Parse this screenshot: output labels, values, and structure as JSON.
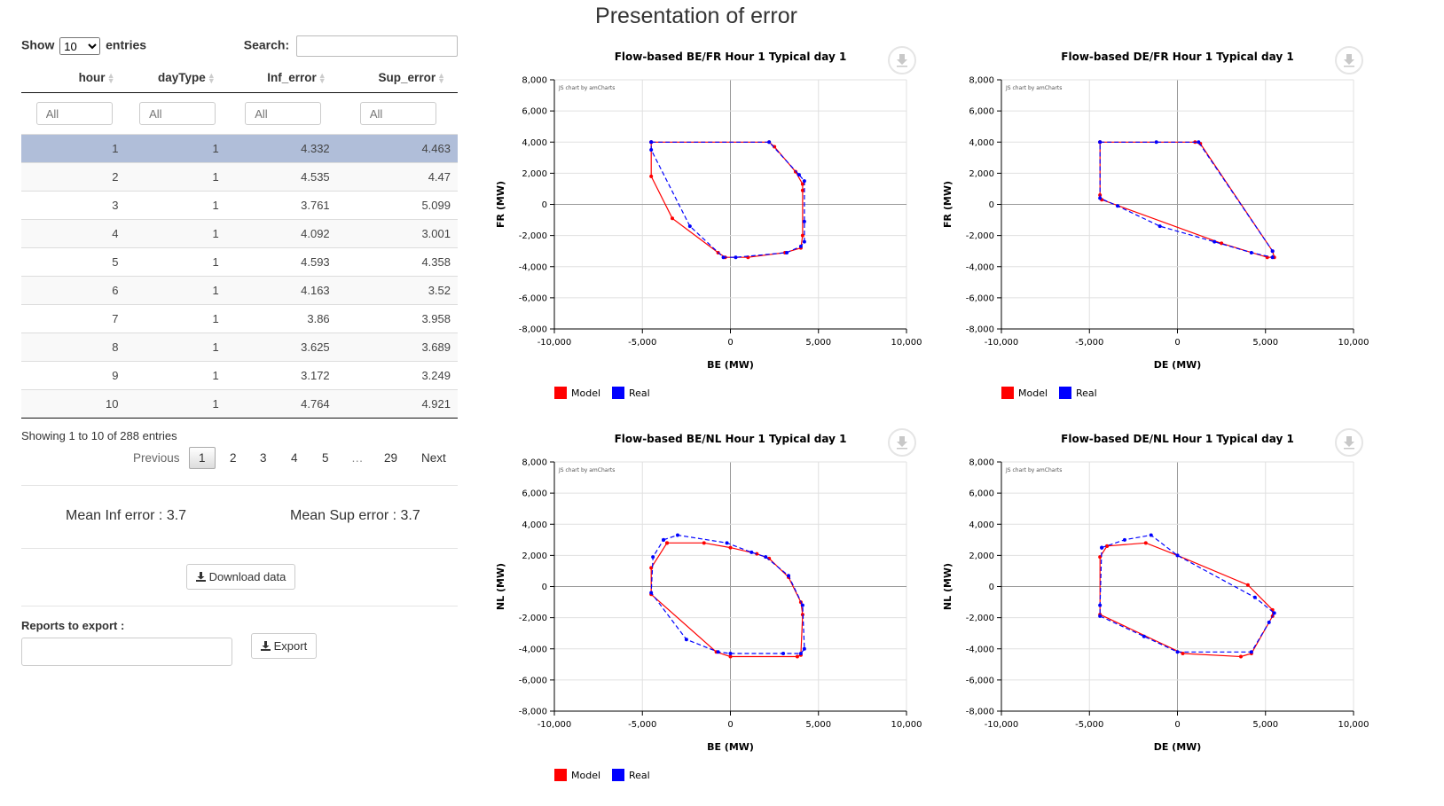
{
  "page_title": "Presentation of error",
  "table": {
    "show_label": "Show",
    "entries_label": "entries",
    "page_length": "10",
    "search_label": "Search:",
    "search_value": "",
    "columns": [
      "hour",
      "dayType",
      "Inf_error",
      "Sup_error"
    ],
    "filter_placeholder": "All",
    "rows": [
      [
        "1",
        "1",
        "4.332",
        "4.463"
      ],
      [
        "2",
        "1",
        "4.535",
        "4.47"
      ],
      [
        "3",
        "1",
        "3.761",
        "5.099"
      ],
      [
        "4",
        "1",
        "4.092",
        "3.001"
      ],
      [
        "5",
        "1",
        "4.593",
        "4.358"
      ],
      [
        "6",
        "1",
        "4.163",
        "3.52"
      ],
      [
        "7",
        "1",
        "3.86",
        "3.958"
      ],
      [
        "8",
        "1",
        "3.625",
        "3.689"
      ],
      [
        "9",
        "1",
        "3.172",
        "3.249"
      ],
      [
        "10",
        "1",
        "4.764",
        "4.921"
      ]
    ],
    "selected_row": 0,
    "info": "Showing 1 to 10 of 288 entries",
    "pagination": {
      "previous": "Previous",
      "pages": [
        "1",
        "2",
        "3",
        "4",
        "5",
        "…",
        "29"
      ],
      "current": "1",
      "next": "Next"
    }
  },
  "mean_inf": "Mean Inf error : 3.7",
  "mean_sup": "Mean Sup error : 3.7",
  "download_button": "Download data",
  "reports_label": "Reports to export :",
  "reports_value": "",
  "export_button": "Export",
  "download_icon": "download-icon",
  "colors": {
    "model": "#ff0000",
    "real": "#0000ff",
    "selected_row": "#b0bed9"
  },
  "chart_data": [
    {
      "type": "scatter",
      "title": "Flow-based BE/FR Hour 1 Typical day 1",
      "xlabel": "BE (MW)",
      "ylabel": "FR (MW)",
      "xlim": [
        -10000,
        10000
      ],
      "ylim": [
        -8000,
        8000
      ],
      "xticks": [
        "-10,000",
        "-5,000",
        "0",
        "5,000",
        "10,000"
      ],
      "yticks": [
        "8,000",
        "6,000",
        "4,000",
        "2,000",
        "0",
        "-2,000",
        "-4,000",
        "-6,000",
        "-8,000"
      ],
      "credit": "JS chart by amCharts",
      "legend": [
        "Model",
        "Real"
      ],
      "series": [
        {
          "name": "Model",
          "line": "solid",
          "points": [
            [
              -4500,
              4000
            ],
            [
              2200,
              4000
            ],
            [
              2500,
              3700
            ],
            [
              3700,
              2100
            ],
            [
              4100,
              1300
            ],
            [
              4100,
              900
            ],
            [
              4100,
              -2000
            ],
            [
              4000,
              -2800
            ],
            [
              3100,
              -3100
            ],
            [
              1000,
              -3400
            ],
            [
              -300,
              -3400
            ],
            [
              -700,
              -3100
            ],
            [
              -3300,
              -900
            ],
            [
              -4500,
              1800
            ],
            [
              -4500,
              4000
            ]
          ]
        },
        {
          "name": "Real",
          "line": "dashed",
          "points": [
            [
              -4500,
              4000
            ],
            [
              2200,
              4000
            ],
            [
              3900,
              1900
            ],
            [
              4200,
              1500
            ],
            [
              4200,
              -1100
            ],
            [
              4200,
              -2400
            ],
            [
              4000,
              -2700
            ],
            [
              3200,
              -3100
            ],
            [
              300,
              -3400
            ],
            [
              -400,
              -3400
            ],
            [
              -2300,
              -1400
            ],
            [
              -4500,
              3500
            ],
            [
              -4500,
              4000
            ]
          ]
        }
      ]
    },
    {
      "type": "scatter",
      "title": "Flow-based DE/FR Hour 1 Typical day 1",
      "xlabel": "DE (MW)",
      "ylabel": "FR (MW)",
      "xlim": [
        -10000,
        10000
      ],
      "ylim": [
        -8000,
        8000
      ],
      "xticks": [
        "-10,000",
        "-5,000",
        "0",
        "5,000",
        "10,000"
      ],
      "yticks": [
        "8,000",
        "6,000",
        "4,000",
        "2,000",
        "0",
        "-2,000",
        "-4,000",
        "-6,000",
        "-8,000"
      ],
      "credit": "JS chart by amCharts",
      "legend": [
        "Model",
        "Real"
      ],
      "series": [
        {
          "name": "Model",
          "line": "solid",
          "points": [
            [
              -4400,
              4000
            ],
            [
              1000,
              4000
            ],
            [
              1300,
              3900
            ],
            [
              5400,
              -3000
            ],
            [
              5500,
              -3400
            ],
            [
              5100,
              -3400
            ],
            [
              2500,
              -2500
            ],
            [
              -4300,
              300
            ],
            [
              -4400,
              600
            ],
            [
              -4400,
              4000
            ]
          ]
        },
        {
          "name": "Real",
          "line": "dashed",
          "points": [
            [
              -4400,
              4000
            ],
            [
              -1200,
              4000
            ],
            [
              1200,
              4000
            ],
            [
              5400,
              -3000
            ],
            [
              5400,
              -3400
            ],
            [
              4200,
              -3100
            ],
            [
              2100,
              -2400
            ],
            [
              -1000,
              -1400
            ],
            [
              -3400,
              -100
            ],
            [
              -4400,
              400
            ],
            [
              -4400,
              4000
            ]
          ]
        }
      ]
    },
    {
      "type": "scatter",
      "title": "Flow-based BE/NL Hour 1 Typical day 1",
      "xlabel": "BE (MW)",
      "ylabel": "NL (MW)",
      "xlim": [
        -10000,
        10000
      ],
      "ylim": [
        -8000,
        8000
      ],
      "xticks": [
        "-10,000",
        "-5,000",
        "0",
        "5,000",
        "10,000"
      ],
      "yticks": [
        "8,000",
        "6,000",
        "4,000",
        "2,000",
        "0",
        "-2,000",
        "-4,000",
        "-6,000",
        "-8,000"
      ],
      "credit": "JS chart by amCharts",
      "legend": [
        "Model",
        "Real"
      ],
      "series": [
        {
          "name": "Model",
          "line": "solid",
          "points": [
            [
              -3600,
              2800
            ],
            [
              -1500,
              2800
            ],
            [
              0,
              2500
            ],
            [
              1500,
              2100
            ],
            [
              2200,
              1800
            ],
            [
              3300,
              600
            ],
            [
              4000,
              -1000
            ],
            [
              4100,
              -1800
            ],
            [
              4000,
              -4400
            ],
            [
              3800,
              -4500
            ],
            [
              0,
              -4500
            ],
            [
              -800,
              -4200
            ],
            [
              -4500,
              -500
            ],
            [
              -4500,
              1200
            ],
            [
              -3600,
              2800
            ]
          ]
        },
        {
          "name": "Real",
          "line": "dashed",
          "points": [
            [
              -3800,
              3000
            ],
            [
              -3000,
              3300
            ],
            [
              -200,
              2800
            ],
            [
              1200,
              2200
            ],
            [
              2000,
              1900
            ],
            [
              3300,
              700
            ],
            [
              4100,
              -1200
            ],
            [
              4200,
              -4000
            ],
            [
              4000,
              -4300
            ],
            [
              3000,
              -4300
            ],
            [
              0,
              -4300
            ],
            [
              -700,
              -4200
            ],
            [
              -2500,
              -3400
            ],
            [
              -4500,
              -400
            ],
            [
              -4400,
              1900
            ],
            [
              -3800,
              3000
            ]
          ]
        }
      ]
    },
    {
      "type": "scatter",
      "title": "Flow-based DE/NL Hour 1 Typical day 1",
      "xlabel": "DE (MW)",
      "ylabel": "NL (MW)",
      "xlim": [
        -10000,
        10000
      ],
      "ylim": [
        -8000,
        8000
      ],
      "xticks": [
        "-10,000",
        "-5,000",
        "0",
        "5,000",
        "10,000"
      ],
      "yticks": [
        "8,000",
        "6,000",
        "4,000",
        "2,000",
        "0",
        "-2,000",
        "-4,000",
        "-6,000",
        "-8,000"
      ],
      "credit": "JS chart by amCharts",
      "legend": [],
      "series": [
        {
          "name": "Model",
          "line": "solid",
          "points": [
            [
              -4000,
              2600
            ],
            [
              -1800,
              2800
            ],
            [
              0,
              2000
            ],
            [
              4000,
              100
            ],
            [
              5400,
              -1500
            ],
            [
              5400,
              -1900
            ],
            [
              4200,
              -4300
            ],
            [
              3600,
              -4500
            ],
            [
              300,
              -4300
            ],
            [
              -4400,
              -1800
            ],
            [
              -4400,
              1900
            ],
            [
              -4000,
              2600
            ]
          ]
        },
        {
          "name": "Real",
          "line": "dashed",
          "points": [
            [
              -4300,
              2500
            ],
            [
              -3000,
              3000
            ],
            [
              -1500,
              3300
            ],
            [
              0,
              2000
            ],
            [
              4400,
              -700
            ],
            [
              5500,
              -1700
            ],
            [
              5200,
              -2300
            ],
            [
              4200,
              -4200
            ],
            [
              0,
              -4200
            ],
            [
              -1900,
              -3200
            ],
            [
              -4400,
              -1900
            ],
            [
              -4400,
              -1200
            ],
            [
              -4300,
              2500
            ]
          ]
        }
      ]
    }
  ]
}
